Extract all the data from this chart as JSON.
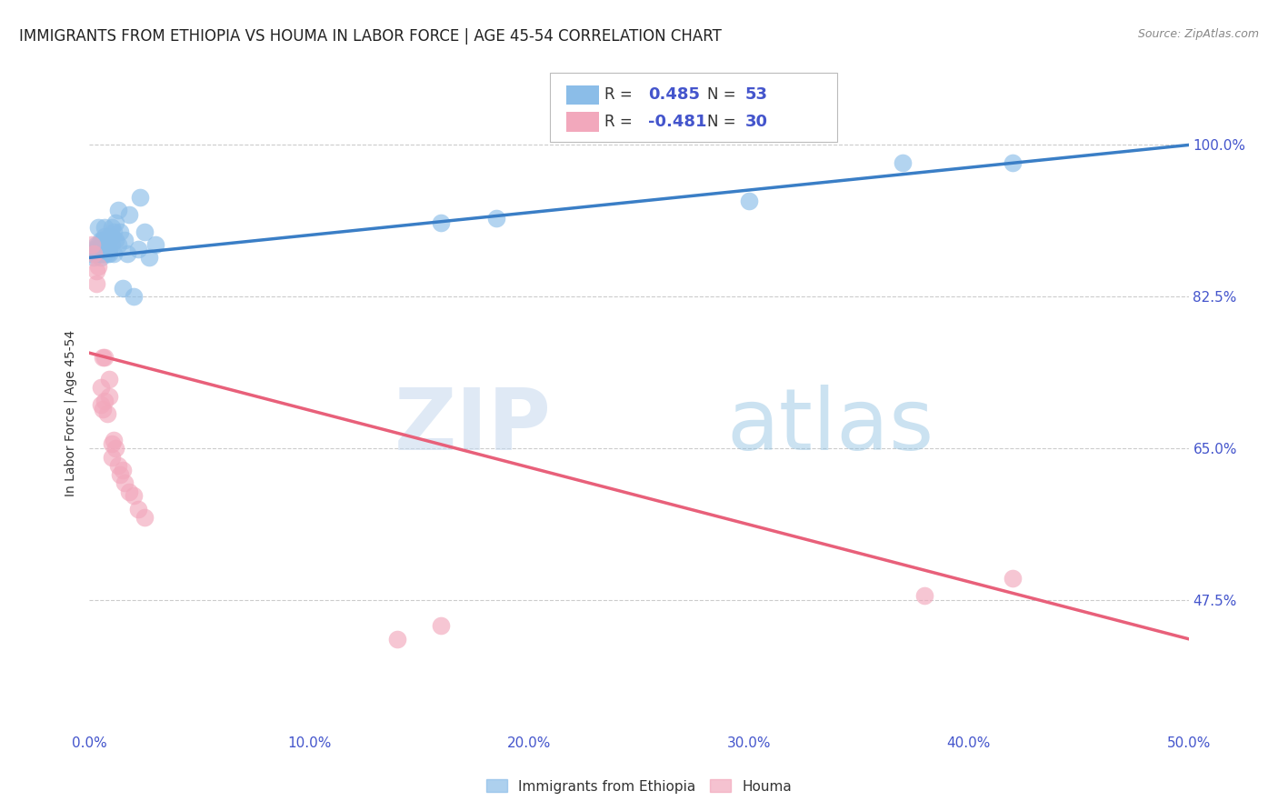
{
  "title": "IMMIGRANTS FROM ETHIOPIA VS HOUMA IN LABOR FORCE | AGE 45-54 CORRELATION CHART",
  "source": "Source: ZipAtlas.com",
  "xlabel_ticks": [
    "0.0%",
    "10.0%",
    "20.0%",
    "30.0%",
    "40.0%",
    "50.0%"
  ],
  "ylabel_ticks": [
    "47.5%",
    "65.0%",
    "82.5%",
    "100.0%"
  ],
  "ylabel_label": "In Labor Force | Age 45-54",
  "xmin": 0.0,
  "xmax": 0.5,
  "ymin": 0.325,
  "ymax": 1.055,
  "legend_label_blue": "Immigrants from Ethiopia",
  "legend_label_pink": "Houma",
  "blue_color": "#8BBDE8",
  "pink_color": "#F2A8BC",
  "blue_line_color": "#3A7EC6",
  "pink_line_color": "#E8607A",
  "watermark_zip": "ZIP",
  "watermark_atlas": "atlas",
  "blue_scatter_x": [
    0.001,
    0.002,
    0.002,
    0.003,
    0.003,
    0.003,
    0.004,
    0.004,
    0.004,
    0.005,
    0.005,
    0.005,
    0.005,
    0.006,
    0.006,
    0.006,
    0.006,
    0.007,
    0.007,
    0.007,
    0.007,
    0.007,
    0.008,
    0.008,
    0.008,
    0.009,
    0.009,
    0.009,
    0.01,
    0.01,
    0.01,
    0.011,
    0.011,
    0.012,
    0.012,
    0.013,
    0.013,
    0.014,
    0.015,
    0.016,
    0.017,
    0.018,
    0.02,
    0.022,
    0.023,
    0.025,
    0.027,
    0.03,
    0.16,
    0.185,
    0.3,
    0.37,
    0.42
  ],
  "blue_scatter_y": [
    0.875,
    0.88,
    0.87,
    0.885,
    0.875,
    0.88,
    0.875,
    0.885,
    0.905,
    0.875,
    0.89,
    0.88,
    0.87,
    0.875,
    0.88,
    0.885,
    0.89,
    0.88,
    0.875,
    0.89,
    0.895,
    0.905,
    0.875,
    0.88,
    0.89,
    0.88,
    0.875,
    0.895,
    0.905,
    0.895,
    0.885,
    0.9,
    0.875,
    0.91,
    0.89,
    0.925,
    0.885,
    0.9,
    0.835,
    0.89,
    0.875,
    0.92,
    0.825,
    0.88,
    0.94,
    0.9,
    0.87,
    0.885,
    0.91,
    0.915,
    0.935,
    0.98,
    0.98
  ],
  "pink_scatter_x": [
    0.001,
    0.002,
    0.003,
    0.003,
    0.004,
    0.005,
    0.005,
    0.006,
    0.006,
    0.007,
    0.007,
    0.008,
    0.009,
    0.009,
    0.01,
    0.01,
    0.011,
    0.012,
    0.013,
    0.014,
    0.015,
    0.016,
    0.018,
    0.02,
    0.022,
    0.025,
    0.38,
    0.42,
    0.14,
    0.16
  ],
  "pink_scatter_y": [
    0.885,
    0.875,
    0.855,
    0.84,
    0.86,
    0.72,
    0.7,
    0.755,
    0.695,
    0.755,
    0.705,
    0.69,
    0.73,
    0.71,
    0.64,
    0.655,
    0.66,
    0.65,
    0.63,
    0.62,
    0.625,
    0.61,
    0.6,
    0.595,
    0.58,
    0.57,
    0.48,
    0.5,
    0.43,
    0.445
  ],
  "blue_trend_x": [
    0.0,
    0.5
  ],
  "blue_trend_y": [
    0.87,
    1.0
  ],
  "pink_trend_x": [
    0.0,
    0.5
  ],
  "pink_trend_y": [
    0.76,
    0.43
  ],
  "ytick_positions": [
    0.475,
    0.65,
    0.825,
    1.0
  ],
  "xtick_positions": [
    0.0,
    0.1,
    0.2,
    0.3,
    0.4,
    0.5
  ],
  "grid_color": "#CCCCCC",
  "background_color": "#FFFFFF",
  "title_fontsize": 12,
  "axis_label_fontsize": 10,
  "tick_fontsize": 11,
  "legend_fontsize": 12,
  "accent_color": "#4455CC"
}
